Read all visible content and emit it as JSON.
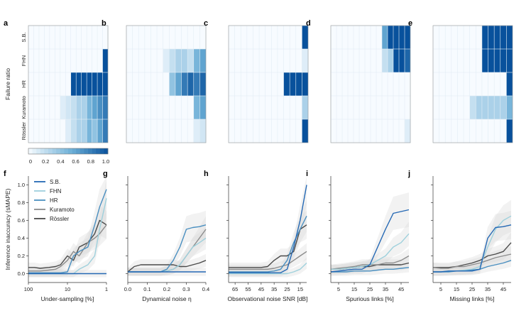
{
  "chart_data": {
    "colors": {
      "S.B.": "#2468b4",
      "FHN": "#9ed0dc",
      "HR": "#4a8fc0",
      "Kuramoto": "#8c8c8c",
      "Rössler": "#4a4a4a",
      "heat_low": "#f7fbff",
      "heat_high": "#08519c",
      "band": "#d9d9d9"
    },
    "heatmaps": [
      {
        "label": "a",
        "ylabel": "Failure ratio",
        "rows": [
          "S.B.",
          "FHN",
          "HR",
          "Kuramoto",
          "Rössler"
        ],
        "matrix": [
          [
            0,
            0,
            0,
            0,
            0,
            0,
            0,
            0,
            0,
            0,
            0,
            0,
            0,
            0,
            0
          ],
          [
            0,
            0,
            0,
            0,
            0,
            0,
            0,
            0,
            0,
            0,
            0,
            0,
            0,
            0,
            1
          ],
          [
            0,
            0,
            0,
            0,
            0,
            0,
            0,
            0,
            1,
            1,
            1,
            1,
            1,
            1,
            1
          ],
          [
            0,
            0,
            0,
            0,
            0,
            0,
            0.1,
            0.15,
            0.2,
            0.3,
            0.3,
            0.5,
            0.6,
            0.7,
            0.8
          ],
          [
            0,
            0,
            0,
            0,
            0,
            0,
            0,
            0.1,
            0.2,
            0.3,
            0.3,
            0.5,
            0.4,
            0.6,
            0.8
          ]
        ]
      },
      {
        "label": "b",
        "rows": [
          "S.B.",
          "FHN",
          "HR",
          "Kuramoto",
          "Rössler"
        ],
        "matrix": [
          [
            0,
            0,
            0,
            0,
            0,
            0,
            0,
            0,
            0,
            0,
            0,
            0,
            0
          ],
          [
            0,
            0,
            0,
            0,
            0,
            0,
            0.1,
            0.2,
            0.3,
            0.3,
            0.2,
            0.5,
            0.6
          ],
          [
            0,
            0,
            0,
            0,
            0,
            0,
            0,
            0.4,
            0.6,
            0.8,
            0.9,
            0.8,
            0.9
          ],
          [
            0,
            0,
            0,
            0,
            0,
            0,
            0,
            0,
            0,
            0,
            0,
            0.5,
            0.6
          ],
          [
            0,
            0,
            0,
            0,
            0,
            0,
            0,
            0,
            0,
            0,
            0,
            0.1,
            0.15
          ]
        ]
      },
      {
        "label": "c",
        "rows": [
          "S.B.",
          "FHN",
          "HR",
          "Kuramoto",
          "Rössler"
        ],
        "matrix": [
          [
            0,
            0,
            0,
            0,
            0,
            0,
            0,
            0,
            0,
            0,
            0,
            0,
            1
          ],
          [
            0,
            0,
            0,
            0,
            0,
            0,
            0,
            0,
            0,
            0,
            0,
            0,
            0.1
          ],
          [
            0,
            0,
            0,
            0,
            0,
            0,
            0,
            0,
            0,
            1,
            1,
            1,
            1
          ],
          [
            0,
            0,
            0,
            0,
            0,
            0,
            0,
            0,
            0,
            0,
            0,
            0,
            0.3
          ],
          [
            0,
            0,
            0,
            0,
            0,
            0,
            0,
            0,
            0,
            0,
            0,
            0,
            1
          ]
        ]
      },
      {
        "label": "d",
        "rows": [
          "S.B.",
          "FHN",
          "HR",
          "Kuramoto",
          "Rössler"
        ],
        "matrix": [
          [
            0,
            0,
            0,
            0,
            0,
            0,
            0,
            0,
            0,
            0.6,
            1,
            1,
            1,
            1
          ],
          [
            0,
            0,
            0,
            0,
            0,
            0,
            0,
            0,
            0,
            0.2,
            0.3,
            1,
            1,
            0.9
          ],
          [
            0,
            0,
            0,
            0,
            0,
            0,
            0,
            0,
            0,
            0,
            0,
            0,
            0,
            0
          ],
          [
            0,
            0,
            0,
            0,
            0,
            0,
            0,
            0,
            0,
            0,
            0,
            0,
            0,
            0
          ],
          [
            0,
            0,
            0,
            0,
            0,
            0,
            0,
            0,
            0,
            0,
            0,
            0,
            0,
            0.1
          ]
        ]
      },
      {
        "label": "e",
        "rows": [
          "S.B.",
          "FHN",
          "HR",
          "Kuramoto",
          "Rössler"
        ],
        "matrix": [
          [
            0,
            0,
            0,
            0,
            0,
            0,
            0,
            0,
            1,
            1,
            1,
            1,
            1
          ],
          [
            0,
            0,
            0,
            0,
            0,
            0,
            0,
            0,
            1,
            1,
            1,
            1,
            1
          ],
          [
            0,
            0,
            0,
            0,
            0,
            0,
            0,
            0,
            0,
            0,
            0,
            0,
            1
          ],
          [
            0,
            0,
            0,
            0,
            0,
            0,
            0.2,
            0.3,
            0.3,
            0.3,
            0.3,
            0.3,
            0.5
          ],
          [
            0,
            0,
            0,
            0,
            0,
            0,
            0,
            0,
            0,
            0,
            0,
            0,
            1
          ]
        ]
      }
    ],
    "colorbar": {
      "ticks": [
        "0",
        "0.2",
        "0.4",
        "0.6",
        "0.8",
        "1.0"
      ],
      "range": [
        0,
        1
      ]
    },
    "line_panels": [
      {
        "label": "f",
        "ylabel": "Inference inaccuracy (sMAPE)",
        "xlabel": "Under-sampling [%]",
        "x_scale": "log-reversed",
        "x_ticks": [
          "100",
          "10",
          "1"
        ],
        "y_ticks": [
          "0.0",
          "0.2",
          "0.4",
          "0.6",
          "0.8",
          "1.0"
        ],
        "ylim": [
          -0.1,
          1.1
        ],
        "legend": [
          "S.B.",
          "FHN",
          "HR",
          "Kuramoto",
          "Rössler"
        ],
        "x": [
          100,
          70,
          50,
          30,
          20,
          15,
          10,
          7,
          5,
          3,
          2,
          1.5,
          1
        ],
        "series": [
          {
            "name": "S.B.",
            "values": [
              0,
              0,
              0,
              0,
              0,
              0,
              0,
              0,
              0,
              0,
              0,
              0,
              0
            ]
          },
          {
            "name": "FHN",
            "values": [
              0,
              0,
              0,
              0,
              0,
              0,
              0,
              0,
              0.05,
              0.1,
              0.2,
              0.5,
              0.85
            ]
          },
          {
            "name": "HR",
            "values": [
              0.01,
              0.01,
              0.01,
              0.01,
              0.01,
              0.01,
              0.02,
              0.2,
              0.25,
              0.3,
              0.55,
              0.75,
              0.95
            ]
          },
          {
            "name": "Kuramoto",
            "values": [
              0.03,
              0.03,
              0.03,
              0.04,
              0.05,
              0.08,
              0.15,
              0.25,
              0.2,
              0.35,
              0.4,
              0.45,
              0.55
            ]
          },
          {
            "name": "Rössler",
            "values": [
              0.07,
              0.07,
              0.06,
              0.07,
              0.08,
              0.1,
              0.2,
              0.15,
              0.3,
              0.35,
              0.45,
              0.6,
              0.55
            ]
          }
        ]
      },
      {
        "label": "g",
        "xlabel": "Dynamical noise η",
        "x_ticks": [
          "0.0",
          "0.1",
          "0.2",
          "0.3",
          "0.4"
        ],
        "xlim": [
          0,
          0.4
        ],
        "ylim": [
          -0.1,
          1.1
        ],
        "x": [
          0,
          0.033,
          0.067,
          0.1,
          0.133,
          0.167,
          0.2,
          0.233,
          0.267,
          0.3,
          0.333,
          0.367,
          0.4
        ],
        "series": [
          {
            "name": "S.B.",
            "values": [
              0.02,
              0.02,
              0.02,
              0.02,
              0.02,
              0.02,
              0.02,
              0.02,
              0.02,
              0.02,
              0.02,
              0.02,
              0.02
            ]
          },
          {
            "name": "FHN",
            "values": [
              0.02,
              0.02,
              0.02,
              0.02,
              0.02,
              0.02,
              0.03,
              0.05,
              0.1,
              0.2,
              0.3,
              0.35,
              0.4
            ]
          },
          {
            "name": "HR",
            "values": [
              0.02,
              0.02,
              0.02,
              0.02,
              0.02,
              0.02,
              0.05,
              0.15,
              0.3,
              0.5,
              0.52,
              0.53,
              0.55
            ]
          },
          {
            "name": "Kuramoto",
            "values": [
              0.02,
              0.02,
              0.02,
              0.02,
              0.02,
              0.02,
              0.03,
              0.05,
              0.1,
              0.2,
              0.3,
              0.4,
              0.5
            ]
          },
          {
            "name": "Rössler",
            "values": [
              0.02,
              0.08,
              0.1,
              0.1,
              0.1,
              0.1,
              0.1,
              0.1,
              0.08,
              0.08,
              0.1,
              0.12,
              0.15
            ]
          }
        ]
      },
      {
        "label": "h",
        "xlabel": "Observational noise SNR [dB]",
        "x_scale": "reversed",
        "x_ticks": [
          "65",
          "55",
          "45",
          "35",
          "25",
          "15"
        ],
        "xlim": [
          70,
          10
        ],
        "ylim": [
          -0.1,
          1.1
        ],
        "x": [
          70,
          65,
          60,
          55,
          50,
          45,
          40,
          35,
          30,
          25,
          20,
          15,
          10
        ],
        "series": [
          {
            "name": "S.B.",
            "values": [
              0.01,
              0.01,
              0.01,
              0.01,
              0.01,
              0.01,
              0.01,
              0.01,
              0.01,
              0.05,
              0.3,
              0.6,
              1.0
            ]
          },
          {
            "name": "FHN",
            "values": [
              0,
              0,
              0,
              0,
              0,
              0,
              0,
              0,
              0,
              0,
              0.02,
              0.05,
              0.12
            ]
          },
          {
            "name": "HR",
            "values": [
              0.02,
              0.02,
              0.02,
              0.02,
              0.02,
              0.02,
              0.02,
              0.03,
              0.05,
              0.15,
              0.35,
              0.5,
              0.65
            ]
          },
          {
            "name": "Kuramoto",
            "values": [
              0.05,
              0.05,
              0.05,
              0.05,
              0.05,
              0.05,
              0.05,
              0.06,
              0.08,
              0.1,
              0.15,
              0.2,
              0.25
            ]
          },
          {
            "name": "Rössler",
            "values": [
              0.07,
              0.07,
              0.07,
              0.07,
              0.07,
              0.07,
              0.08,
              0.15,
              0.2,
              0.2,
              0.25,
              0.5,
              0.55
            ]
          }
        ]
      },
      {
        "label": "i",
        "xlabel": "Spurious links [%]",
        "x_ticks": [
          "5",
          "15",
          "25",
          "35",
          "45"
        ],
        "xlim": [
          0,
          50
        ],
        "ylim": [
          -0.1,
          1.1
        ],
        "x": [
          0,
          5,
          10,
          15,
          20,
          25,
          30,
          35,
          40,
          45,
          50
        ],
        "series": [
          {
            "name": "S.B.",
            "values": [
              0.02,
              0.03,
              0.04,
              0.05,
              0.05,
              0.1,
              0.3,
              0.5,
              0.68,
              0.7,
              0.72
            ]
          },
          {
            "name": "FHN",
            "values": [
              0.05,
              0.05,
              0.06,
              0.07,
              0.08,
              0.1,
              0.15,
              0.2,
              0.3,
              0.35,
              0.45
            ]
          },
          {
            "name": "HR",
            "values": [
              0.02,
              0.02,
              0.02,
              0.03,
              0.03,
              0.03,
              0.04,
              0.05,
              0.05,
              0.06,
              0.07
            ]
          },
          {
            "name": "Kuramoto",
            "values": [
              0.05,
              0.06,
              0.07,
              0.08,
              0.1,
              0.1,
              0.1,
              0.12,
              0.12,
              0.15,
              0.2
            ]
          },
          {
            "name": "Rössler",
            "values": [
              0.05,
              0.05,
              0.06,
              0.07,
              0.08,
              0.08,
              0.1,
              0.1,
              0.1,
              0.1,
              0.12
            ]
          }
        ]
      },
      {
        "label": "j",
        "xlabel": "Missing links [%]",
        "x_ticks": [
          "5",
          "15",
          "25",
          "35",
          "45"
        ],
        "xlim": [
          0,
          50
        ],
        "ylim": [
          -0.1,
          1.1
        ],
        "x": [
          0,
          5,
          10,
          15,
          20,
          25,
          30,
          35,
          40,
          45,
          50
        ],
        "series": [
          {
            "name": "S.B.",
            "values": [
              0.02,
              0.02,
              0.03,
              0.03,
              0.03,
              0.03,
              0.05,
              0.4,
              0.52,
              0.53,
              0.55
            ]
          },
          {
            "name": "FHN",
            "values": [
              0.02,
              0.02,
              0.03,
              0.03,
              0.04,
              0.05,
              0.08,
              0.3,
              0.5,
              0.6,
              0.65
            ]
          },
          {
            "name": "HR",
            "values": [
              0.02,
              0.02,
              0.02,
              0.03,
              0.03,
              0.04,
              0.05,
              0.08,
              0.1,
              0.12,
              0.15
            ]
          },
          {
            "name": "Kuramoto",
            "values": [
              0.07,
              0.06,
              0.06,
              0.08,
              0.08,
              0.1,
              0.12,
              0.15,
              0.18,
              0.2,
              0.22
            ]
          },
          {
            "name": "Rössler",
            "values": [
              0.07,
              0.07,
              0.07,
              0.08,
              0.1,
              0.12,
              0.15,
              0.2,
              0.22,
              0.25,
              0.35
            ]
          }
        ]
      }
    ]
  }
}
